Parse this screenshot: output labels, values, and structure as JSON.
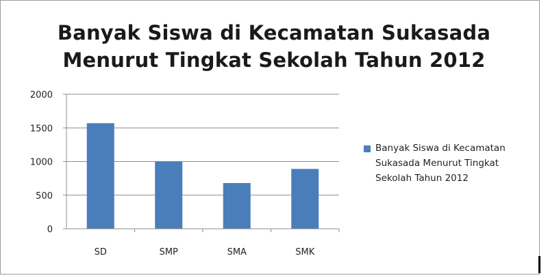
{
  "chart_data": {
    "type": "bar",
    "title_line1": "Banyak Siswa di Kecamatan Sukasada",
    "title_line2": "Menurut Tingkat Sekolah Tahun 2012",
    "categories": [
      "SD",
      "SMP",
      "SMA",
      "SMK"
    ],
    "series": [
      {
        "name": "Banyak Siswa di Kecamatan Sukasada Menurut Tingkat Sekolah Tahun 2012",
        "color": "#4a7ebb",
        "values": [
          1570,
          1000,
          680,
          890
        ]
      }
    ],
    "ylim": [
      0,
      2000
    ],
    "yticks": [
      "0",
      "500",
      "1000",
      "1500",
      "2000"
    ],
    "grid": true,
    "legend_position": "right"
  }
}
